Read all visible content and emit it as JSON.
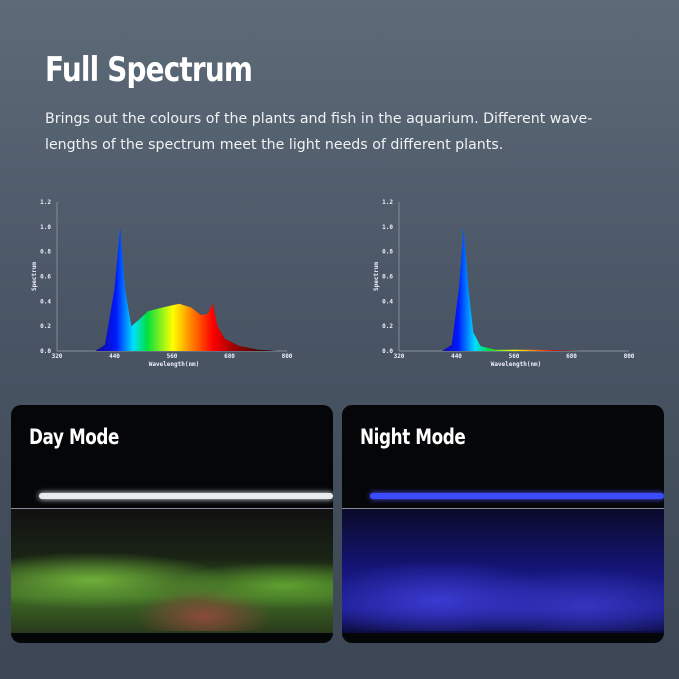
{
  "header": {
    "title": "Full Spectrum",
    "description": "Brings out the colours of the plants and fish in the aquarium.  Different wave-lengths of the spectrum meet the light needs of different plants."
  },
  "chart_data": [
    {
      "type": "area",
      "ylabel": "Spectrum",
      "xlabel": "Wavelength(nm)",
      "xlim": [
        320,
        800
      ],
      "ylim": [
        0,
        1.2
      ],
      "xticks": [
        "320",
        "440",
        "560",
        "680",
        "800"
      ],
      "yticks": [
        "0.0",
        "0.2",
        "0.4",
        "0.6",
        "0.8",
        "1.0",
        "1.2"
      ],
      "fill": "wavelength-rainbow",
      "grid": false,
      "x": [
        400,
        420,
        440,
        452,
        462,
        475,
        490,
        510,
        540,
        575,
        600,
        620,
        635,
        645,
        655,
        670,
        700,
        740,
        780
      ],
      "y": [
        0,
        0.05,
        0.5,
        1.0,
        0.5,
        0.2,
        0.25,
        0.32,
        0.35,
        0.38,
        0.35,
        0.29,
        0.3,
        0.38,
        0.2,
        0.1,
        0.04,
        0.01,
        0
      ]
    },
    {
      "type": "area",
      "ylabel": "Spectrum",
      "xlabel": "Wavelength(nm)",
      "xlim": [
        320,
        800
      ],
      "ylim": [
        0,
        1.2
      ],
      "xticks": [
        "320",
        "440",
        "560",
        "680",
        "800"
      ],
      "yticks": [
        "0.0",
        "0.2",
        "0.4",
        "0.6",
        "0.8",
        "1.0",
        "1.2"
      ],
      "fill": "wavelength-rainbow",
      "grid": false,
      "x": [
        410,
        430,
        445,
        455,
        465,
        475,
        490,
        520,
        600,
        700
      ],
      "y": [
        0,
        0.05,
        0.5,
        1.0,
        0.5,
        0.15,
        0.04,
        0.01,
        0.01,
        0
      ]
    }
  ],
  "panels": [
    {
      "label": "Day Mode",
      "light_color": "#e8ecf0"
    },
    {
      "label": "Night Mode",
      "light_color": "#3b4cff"
    }
  ]
}
